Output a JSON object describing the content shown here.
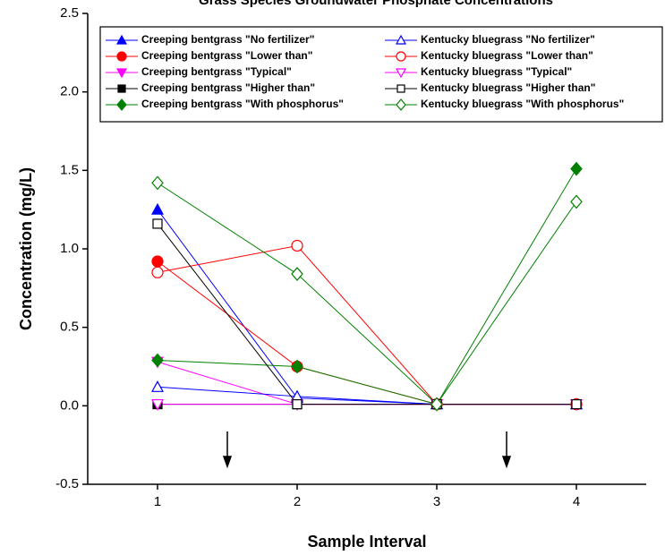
{
  "chart_data": {
    "type": "line",
    "title": "Grass Species Groundwater Phosphate Concentrations",
    "x_label": "Sample Interval",
    "y_label": "Concentration (mg/L)",
    "x": [
      1,
      2,
      3,
      4
    ],
    "xlim": [
      0.5,
      4.5
    ],
    "xticks": [
      1,
      2,
      3,
      4
    ],
    "ylim": [
      -0.5,
      2.5
    ],
    "yticks": [
      -0.5,
      {
        "value": 0,
        "label": "0.0"
      },
      0.5,
      {
        "value": 1,
        "label": "1.0"
      },
      1.5,
      {
        "value": 2,
        "label": "2.0"
      },
      2.5
    ],
    "legend": "upper left",
    "series": [
      {
        "name": "Creeping bentgrass \"No fertilizer\"",
        "color": "#0000ff",
        "marker": "triangle-up",
        "filled": true,
        "values": [
          1.25,
          0.05,
          0.01,
          0.01
        ]
      },
      {
        "name": "Creeping bentgrass \"Lower than\"",
        "color": "#ff0000",
        "marker": "circle",
        "filled": true,
        "values": [
          0.92,
          0.25,
          0.01,
          0.01
        ]
      },
      {
        "name": "Creeping bentgrass \"Typical\"",
        "color": "#ff00ff",
        "marker": "triangle-down",
        "filled": true,
        "values": [
          0.28,
          0.01,
          0.01,
          0.01
        ]
      },
      {
        "name": "Creeping bentgrass \"Higher than\"",
        "color": "#000000",
        "marker": "square",
        "filled": true,
        "values": [
          0.01,
          0.01,
          0.01,
          0.01
        ]
      },
      {
        "name": "Creeping bentgrass \"With phosphorus\"",
        "color": "#008000",
        "marker": "diamond",
        "filled": true,
        "values": [
          0.29,
          0.25,
          0.01,
          1.51
        ]
      },
      {
        "name": "Kentucky bluegrass \"No fertilizer\"",
        "color": "#0000ff",
        "marker": "triangle-up",
        "filled": false,
        "values": [
          0.12,
          0.06,
          0.01,
          0.01
        ]
      },
      {
        "name": "Kentucky bluegrass \"Lower than\"",
        "color": "#ff0000",
        "marker": "circle",
        "filled": false,
        "values": [
          0.85,
          1.02,
          0.01,
          0.01
        ]
      },
      {
        "name": "Kentucky bluegrass \"Typical\"",
        "color": "#ff00ff",
        "marker": "triangle-down",
        "filled": false,
        "values": [
          0.01,
          0.01,
          0.01,
          0.01
        ]
      },
      {
        "name": "Kentucky bluegrass \"Higher than\"",
        "color": "#000000",
        "marker": "square",
        "filled": false,
        "values": [
          1.16,
          0.01,
          0.01,
          0.01
        ]
      },
      {
        "name": "Kentucky bluegrass \"With phosphorus\"",
        "color": "#008000",
        "marker": "diamond",
        "filled": false,
        "values": [
          1.42,
          0.84,
          0.01,
          1.3
        ]
      }
    ]
  }
}
